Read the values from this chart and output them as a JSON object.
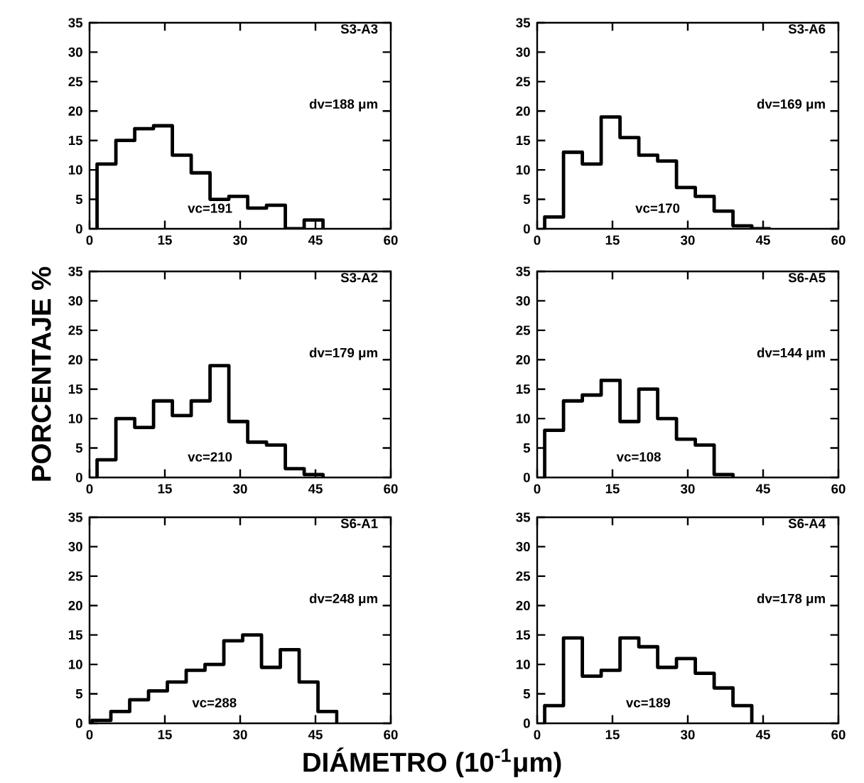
{
  "chart_data": [
    {
      "type": "histogram",
      "title": "S3-A3",
      "color": "#000000",
      "bins": [
        1.5,
        5.25,
        9,
        12.75,
        16.5,
        20.25,
        24,
        27.75,
        31.5,
        35.25,
        39,
        42.75,
        46.5
      ],
      "values": [
        11,
        15,
        17,
        17.5,
        12.5,
        9.5,
        5,
        5.5,
        3.5,
        4,
        0,
        1.5
      ],
      "xlim": [
        0,
        60
      ],
      "ylim": [
        0,
        35
      ],
      "xticks": [
        0,
        15,
        30,
        45,
        60
      ],
      "yticks": [
        0,
        5,
        10,
        15,
        20,
        25,
        30,
        35
      ],
      "annotations": [
        "dv=188 μm",
        "vc=191"
      ]
    },
    {
      "type": "histogram",
      "title": "S3-A6",
      "color": "#000000",
      "bins": [
        1.5,
        5.25,
        9,
        12.75,
        16.5,
        20.25,
        24,
        27.75,
        31.5,
        35.25,
        39,
        42.75,
        46.5
      ],
      "values": [
        2,
        13,
        11,
        19,
        15.5,
        12.5,
        11.5,
        7,
        5.5,
        3,
        0.5,
        0
      ],
      "xlim": [
        0,
        60
      ],
      "ylim": [
        0,
        35
      ],
      "xticks": [
        0,
        15,
        30,
        45,
        60
      ],
      "yticks": [
        0,
        5,
        10,
        15,
        20,
        25,
        30,
        35
      ],
      "annotations": [
        "dv=169 μm",
        "vc=170"
      ]
    },
    {
      "type": "histogram",
      "title": "S3-A2",
      "color": "#000000",
      "bins": [
        1.5,
        5.25,
        9,
        12.75,
        16.5,
        20.25,
        24,
        27.75,
        31.5,
        35.25,
        39,
        42.75,
        46.5
      ],
      "values": [
        3,
        10,
        8.5,
        13,
        10.5,
        13,
        19,
        9.5,
        6,
        5.5,
        1.5,
        0.5
      ],
      "xlim": [
        0,
        60
      ],
      "ylim": [
        0,
        35
      ],
      "xticks": [
        0,
        15,
        30,
        45,
        60
      ],
      "yticks": [
        0,
        5,
        10,
        15,
        20,
        25,
        30,
        35
      ],
      "ylabel": "PORCENTAJE   %",
      "annotations": [
        "dv=179 μm",
        "vc=210"
      ]
    },
    {
      "type": "histogram",
      "title": "S6-A5",
      "color": "#000000",
      "bins": [
        1.5,
        5.25,
        9,
        12.75,
        16.5,
        20.25,
        24,
        27.75,
        31.5,
        35.25,
        39
      ],
      "values": [
        8,
        13,
        14,
        16.5,
        9.5,
        15,
        10,
        6.5,
        5.5,
        0.5
      ],
      "xlim": [
        0,
        60
      ],
      "ylim": [
        0,
        35
      ],
      "xticks": [
        0,
        15,
        30,
        45,
        60
      ],
      "yticks": [
        0,
        5,
        10,
        15,
        20,
        25,
        30,
        35
      ],
      "annotations": [
        "dv=144 μm",
        "vc=108"
      ]
    },
    {
      "type": "histogram",
      "title": "S6-A1",
      "color": "#000000",
      "bins": [
        0.5,
        4.25,
        8,
        11.75,
        15.5,
        19.25,
        23,
        26.75,
        30.5,
        34.25,
        38,
        41.75,
        45.5,
        49.25
      ],
      "values": [
        0.5,
        2,
        4,
        5.5,
        7,
        9,
        10,
        14,
        15,
        9.5,
        12.5,
        7,
        2
      ],
      "xlim": [
        0,
        60
      ],
      "ylim": [
        0,
        35
      ],
      "xticks": [
        0,
        15,
        30,
        45,
        60
      ],
      "yticks": [
        0,
        5,
        10,
        15,
        20,
        25,
        30,
        35
      ],
      "xlabel": "DIÁMETRO  (10$^{-1}$μm)",
      "annotations": [
        "dv=248 μm",
        "vc=288"
      ]
    },
    {
      "type": "histogram",
      "title": "S6-A4",
      "color": "#000000",
      "bins": [
        1.5,
        5.25,
        9,
        12.75,
        16.5,
        20.25,
        24,
        27.75,
        31.5,
        35.25,
        39,
        42.75
      ],
      "values": [
        3,
        14.5,
        8,
        9,
        14.5,
        13,
        9.5,
        11,
        8.5,
        6,
        3
      ],
      "xlim": [
        0,
        60
      ],
      "ylim": [
        0,
        35
      ],
      "xticks": [
        0,
        15,
        30,
        45,
        60
      ],
      "yticks": [
        0,
        5,
        10,
        15,
        20,
        25,
        30,
        35
      ],
      "annotations": [
        "dv=178 μm",
        "vc=189"
      ]
    }
  ]
}
